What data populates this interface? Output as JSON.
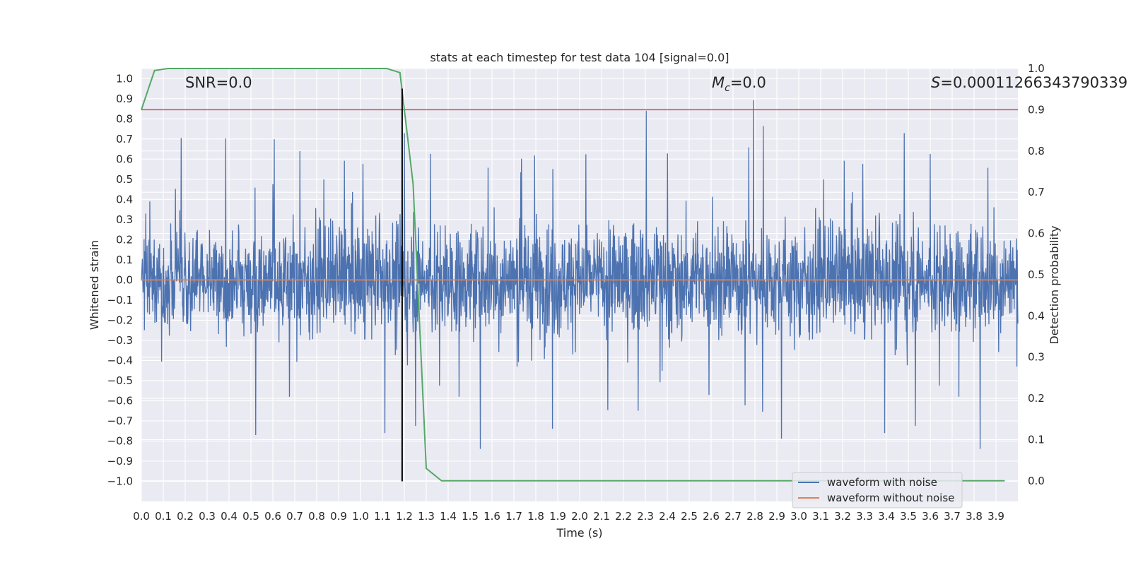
{
  "chart_data": {
    "type": "line",
    "title": "stats at each timestep for test data 104 [signal=0.0]",
    "xlabel": "Time (s)",
    "ylabel": "Whitened strain",
    "y2label": "Detection probability",
    "xlim": [
      0.0,
      4.0
    ],
    "ylim": [
      -1.1,
      1.05
    ],
    "y2lim": [
      -0.05,
      1.0
    ],
    "xticks": [
      "0.0",
      "0.1",
      "0.2",
      "0.3",
      "0.4",
      "0.5",
      "0.6",
      "0.7",
      "0.8",
      "0.9",
      "1.0",
      "1.1",
      "1.2",
      "1.3",
      "1.4",
      "1.5",
      "1.6",
      "1.7",
      "1.8",
      "1.9",
      "2.0",
      "2.1",
      "2.2",
      "2.3",
      "2.4",
      "2.5",
      "2.6",
      "2.7",
      "2.8",
      "2.9",
      "3.0",
      "3.1",
      "3.2",
      "3.3",
      "3.4",
      "3.5",
      "3.6",
      "3.7",
      "3.8",
      "3.9"
    ],
    "yticks": [
      "1.0",
      "0.9",
      "0.8",
      "0.7",
      "0.6",
      "0.5",
      "0.4",
      "0.3",
      "0.2",
      "0.1",
      "0.0",
      "-0.1",
      "-0.2",
      "-0.3",
      "-0.4",
      "-0.5",
      "-0.6",
      "-0.7",
      "-0.8",
      "-0.9",
      "-1.0"
    ],
    "y2ticks": [
      "1.0",
      "0.9",
      "0.8",
      "0.7",
      "0.6",
      "0.5",
      "0.4",
      "0.3",
      "0.2",
      "0.1",
      "0.0"
    ],
    "grid": true,
    "annotations": {
      "snr": "SNR=0.0",
      "mc_symbol": "M",
      "mc_subscript": "c",
      "mc_value": "=0.0",
      "s_symbol": "S",
      "s_value": "=0.00011266343790339"
    },
    "legend": {
      "placement": "lower-right",
      "entries": [
        "waveform with noise",
        "waveform without noise"
      ]
    },
    "series": [
      {
        "name": "waveform with noise",
        "axis": "left",
        "color": "#4c72b0",
        "style": "noise",
        "t_range": [
          0.0,
          4.0
        ],
        "amplitude_max": 0.95,
        "amplitude_min": -1.0
      },
      {
        "name": "waveform without noise",
        "axis": "left",
        "color": "#dd8452",
        "x": [
          0.0,
          4.0
        ],
        "y": [
          0.0,
          0.0
        ]
      },
      {
        "axis": "right",
        "color": "#55a868",
        "x": [
          0.0,
          0.06,
          0.12,
          0.18,
          0.24,
          0.3,
          0.6,
          0.9,
          1.12,
          1.18,
          1.24,
          1.3,
          1.37,
          1.43,
          1.5,
          2.0,
          3.0,
          3.94
        ],
        "y": [
          0.9,
          0.995,
          1.0,
          1.0,
          1.0,
          1.0,
          1.0,
          1.0,
          1.0,
          0.99,
          0.72,
          0.03,
          0.0,
          0.0,
          0.0,
          0.0,
          0.0,
          0.0
        ]
      }
    ],
    "reference_lines": [
      {
        "axis": "right",
        "orientation": "horizontal",
        "value": 0.9,
        "color": "#c44e52"
      },
      {
        "axis": "left",
        "orientation": "vertical",
        "value": 1.19,
        "range": [
          -1.0,
          0.95
        ],
        "color": "#000000"
      }
    ]
  }
}
